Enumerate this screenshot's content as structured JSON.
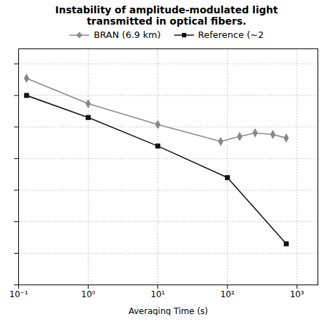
{
  "chart_data": {
    "type": "line",
    "title": "Instability of amplitude-modulated light\ntransmitted in optical fibers.",
    "x_label": "Averaging Time (s)",
    "series": [
      {
        "name": "BRAN (6.9 km)",
        "color": "#888888",
        "marker": "diamond",
        "x": [
          0.13,
          1.0,
          10.0,
          80.0,
          150.0,
          250.0,
          450.0,
          700.0
        ],
        "values": [
          0.00035,
          5.5e-05,
          1.2e-05,
          3.5e-06,
          5e-06,
          6.5e-06,
          5.8e-06,
          4.5e-06
        ]
      },
      {
        "name": "Reference (~2",
        "color": "#111111",
        "marker": "square",
        "x": [
          0.13,
          1.0,
          10.0,
          100.0,
          700.0
        ],
        "values": [
          0.0001,
          2e-05,
          2.5e-06,
          2.5e-07,
          2e-09
        ]
      }
    ],
    "log": true,
    "xlim": [
      0.1,
      1995.2623149688789
    ],
    "xticks": [
      {
        "value": 0.1,
        "label": "10⁻¹"
      },
      {
        "value": 1,
        "label": "10⁰"
      },
      {
        "value": 10,
        "label": "10¹"
      },
      {
        "value": 100,
        "label": "10²"
      },
      {
        "value": 1000,
        "label": "10³"
      }
    ],
    "ylim": [
      1e-10,
      0.003
    ],
    "yticks": [
      1e-10,
      1e-09,
      1e-08,
      1e-07,
      1e-06,
      1e-05,
      0.0001,
      0.001
    ],
    "tick_labels": "x",
    "grid": true,
    "legend": "right"
  }
}
